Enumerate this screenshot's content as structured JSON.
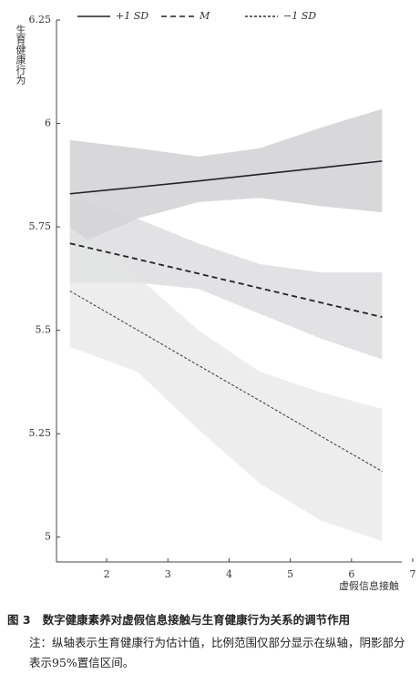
{
  "chart_data": {
    "type": "line",
    "y_label": "生育健康行为",
    "x_label": "虚假信息接触",
    "x": [
      1.4,
      2.5,
      3.5,
      4.5,
      5.5,
      6.5
    ],
    "xlim": [
      1.18,
      7
    ],
    "xticks": [
      2,
      3,
      4,
      5,
      6,
      7
    ],
    "ylim": [
      4.94,
      6.25
    ],
    "yticks": [
      5.0,
      5.25,
      5.5,
      5.75,
      6.0,
      6.25
    ],
    "series": [
      {
        "name": "+1 SD",
        "color": "#222222",
        "band_color": "#c8c8cc",
        "dash": "none",
        "values": [
          5.83,
          5.846,
          5.861,
          5.877,
          5.893,
          5.909
        ],
        "upper": [
          5.96,
          5.94,
          5.92,
          5.94,
          5.99,
          6.035
        ],
        "lower": [
          5.7,
          5.77,
          5.81,
          5.82,
          5.8,
          5.785
        ]
      },
      {
        "name": "M",
        "color": "#222222",
        "band_color": "#d6d6d8",
        "dash": "6,4",
        "values": [
          5.71,
          5.672,
          5.637,
          5.602,
          5.567,
          5.532
        ],
        "upper": [
          5.82,
          5.77,
          5.71,
          5.66,
          5.64,
          5.64
        ],
        "lower": [
          5.615,
          5.615,
          5.6,
          5.54,
          5.48,
          5.43
        ]
      },
      {
        "name": "−1 SD",
        "color": "#333333",
        "band_color": "#e4e6e4",
        "dash": "3,2",
        "values": [
          5.595,
          5.501,
          5.415,
          5.33,
          5.244,
          5.159
        ],
        "upper": [
          5.75,
          5.63,
          5.5,
          5.4,
          5.35,
          5.31
        ],
        "lower": [
          5.46,
          5.4,
          5.26,
          5.13,
          5.04,
          4.99
        ]
      }
    ]
  },
  "caption": {
    "label": "图 3",
    "title": "数字健康素养对虚假信息接触与生育健康行为关系的调节作用",
    "note": "注：纵轴表示生育健康行为估计值，比例范围仅部分显示在纵轴，阴影部分表示95%置信区间。"
  }
}
